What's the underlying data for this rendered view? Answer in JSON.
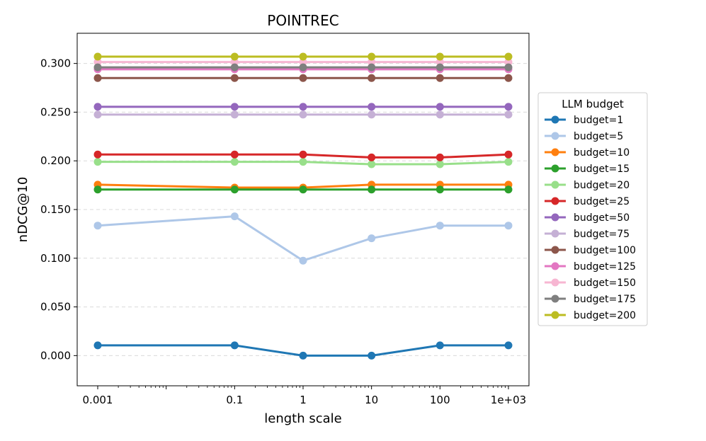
{
  "chart_data": {
    "type": "line",
    "title": "POINTREC",
    "xlabel": "length scale",
    "ylabel": "nDCG@10",
    "xscale": "log",
    "x": [
      0.001,
      0.1,
      1,
      10,
      100,
      1000
    ],
    "x_tick_labels": [
      "0.001",
      "0.1",
      "1",
      "10",
      "100",
      "1e+03"
    ],
    "y_ticks": [
      0.0,
      0.05,
      0.1,
      0.15,
      0.2,
      0.25,
      0.3
    ],
    "y_tick_labels": [
      "0.000",
      "0.050",
      "0.100",
      "0.150",
      "0.200",
      "0.250",
      "0.300"
    ],
    "ylim": [
      -0.031,
      0.331
    ],
    "grid": "horizontal dashed",
    "legend": {
      "title": "LLM budget",
      "position": "outside right"
    },
    "series": [
      {
        "name": "budget=1",
        "color": "#1f77b4",
        "values": [
          0.0105,
          0.0105,
          0.0,
          0.0,
          0.0105,
          0.0105
        ]
      },
      {
        "name": "budget=5",
        "color": "#aec7e8",
        "values": [
          0.1335,
          0.143,
          0.0975,
          0.1205,
          0.1335,
          0.1335
        ]
      },
      {
        "name": "budget=10",
        "color": "#ff7f0e",
        "values": [
          0.1755,
          0.1725,
          0.1725,
          0.1755,
          0.1755,
          0.1755
        ]
      },
      {
        "name": "budget=15",
        "color": "#2ca02c",
        "values": [
          0.1705,
          0.1705,
          0.1705,
          0.1705,
          0.1705,
          0.1705
        ]
      },
      {
        "name": "budget=20",
        "color": "#98df8a",
        "values": [
          0.199,
          0.199,
          0.199,
          0.1965,
          0.1965,
          0.199
        ]
      },
      {
        "name": "budget=25",
        "color": "#d62728",
        "values": [
          0.2065,
          0.2065,
          0.2065,
          0.2035,
          0.2035,
          0.2065
        ]
      },
      {
        "name": "budget=50",
        "color": "#9467bd",
        "values": [
          0.2555,
          0.2555,
          0.2555,
          0.2555,
          0.2555,
          0.2555
        ]
      },
      {
        "name": "budget=75",
        "color": "#c5b0d5",
        "values": [
          0.2475,
          0.2475,
          0.2475,
          0.2475,
          0.2475,
          0.2475
        ]
      },
      {
        "name": "budget=100",
        "color": "#8c564b",
        "values": [
          0.285,
          0.285,
          0.285,
          0.285,
          0.285,
          0.285
        ]
      },
      {
        "name": "budget=125",
        "color": "#e377c2",
        "values": [
          0.294,
          0.294,
          0.294,
          0.294,
          0.294,
          0.294
        ]
      },
      {
        "name": "budget=150",
        "color": "#f7b6d2",
        "values": [
          0.3015,
          0.3015,
          0.3015,
          0.3015,
          0.3015,
          0.3015
        ]
      },
      {
        "name": "budget=175",
        "color": "#7f7f7f",
        "values": [
          0.296,
          0.296,
          0.296,
          0.296,
          0.296,
          0.296
        ]
      },
      {
        "name": "budget=200",
        "color": "#bcbd22",
        "values": [
          0.307,
          0.307,
          0.307,
          0.307,
          0.307,
          0.307
        ]
      }
    ]
  }
}
